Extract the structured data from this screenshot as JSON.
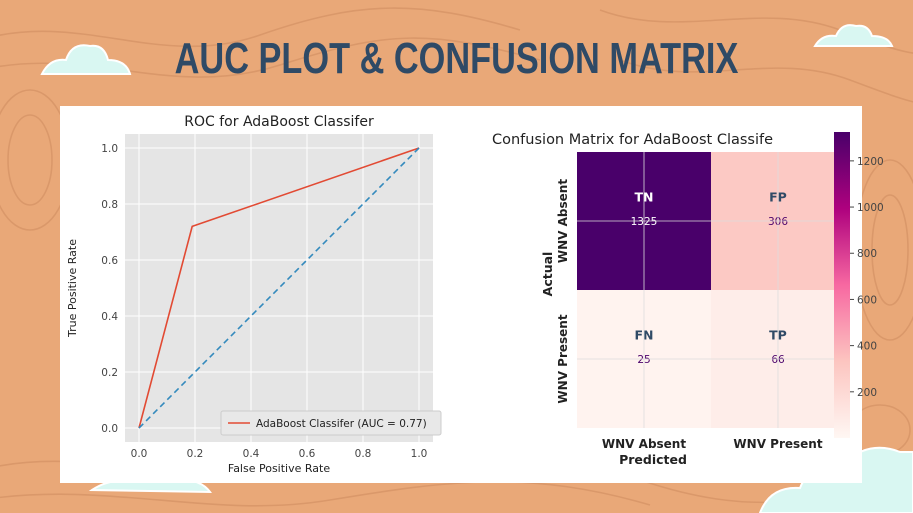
{
  "slide": {
    "title": "AUC PLOT & CONFUSION MATRIX",
    "colors": {
      "background": "#e9a878",
      "title": "#2f4a66",
      "cloud": "#d9f7f2"
    }
  },
  "chart_data": [
    {
      "type": "line",
      "title": "ROC for AdaBoost Classifer",
      "xlabel": "False Positive Rate",
      "ylabel": "True Positive Rate",
      "xlim": [
        0,
        1
      ],
      "ylim": [
        0,
        1
      ],
      "xticks": [
        "0.0",
        "0.2",
        "0.4",
        "0.6",
        "0.8",
        "1.0"
      ],
      "yticks": [
        "0.0",
        "0.2",
        "0.4",
        "0.6",
        "0.8",
        "1.0"
      ],
      "grid": true,
      "legend": "lower-right",
      "series": [
        {
          "name": "AdaBoost Classifer (AUC = 0.77)",
          "color": "#e24a33",
          "x": [
            0.0,
            0.19,
            1.0
          ],
          "y": [
            0.0,
            0.72,
            1.0
          ]
        },
        {
          "color": "#348abd",
          "style": "dashed",
          "x": [
            0.0,
            1.0
          ],
          "y": [
            0.0,
            1.0
          ]
        }
      ]
    },
    {
      "type": "heatmap",
      "title": "Confusion Matrix for AdaBoost Classife",
      "xlabel": "Predicted",
      "ylabel": "Actual",
      "xcategories": [
        "WNV Absent",
        "WNV Present"
      ],
      "ycategories": [
        "WNV Absent",
        "WNV Present"
      ],
      "cell_labels": [
        [
          "TN",
          "FP"
        ],
        [
          "FN",
          "TP"
        ]
      ],
      "values": [
        [
          1325,
          306
        ],
        [
          25,
          66
        ]
      ],
      "colorbar_ticks": [
        200,
        400,
        600,
        800,
        1000,
        1200
      ],
      "colorbar_range": [
        0,
        1325
      ],
      "colormap": "RdPu"
    }
  ]
}
